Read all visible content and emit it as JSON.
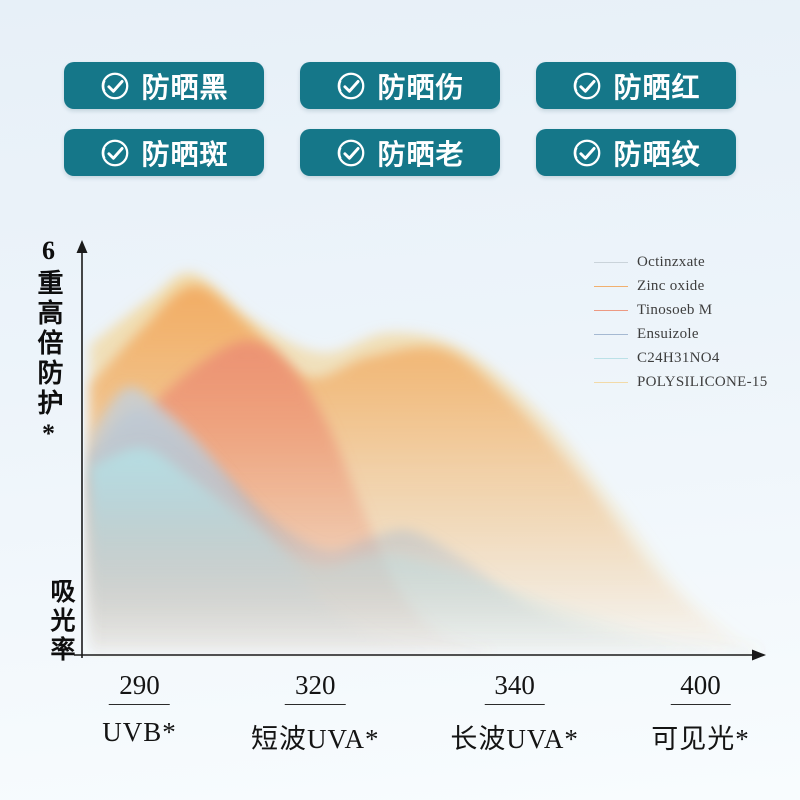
{
  "page": {
    "bg_top": "#e7f0f8",
    "bg_mid": "#edf4fa",
    "bg_bottom": "#f8fcfe"
  },
  "badges": {
    "bg_color": "#157789",
    "items": [
      "防晒黑",
      "防晒伤",
      "防晒红",
      "防晒斑",
      "防晒老",
      "防晒纹"
    ]
  },
  "chart_data": {
    "type": "area",
    "title": "",
    "ylabel_top": "6重高倍防护*",
    "ylabel_bottom": "吸光率",
    "x_range": [
      280,
      410
    ],
    "y_range": [
      0,
      1
    ],
    "grid": false,
    "legend_position": "top-right",
    "axis_color": "#1a1a1a",
    "x_axis": {
      "ticks": [
        {
          "value": "290",
          "label": "UVB*",
          "pos": 0.085
        },
        {
          "value": "320",
          "label": "短波UVA*",
          "pos": 0.345
        },
        {
          "value": "340",
          "label": "长波UVA*",
          "pos": 0.64
        },
        {
          "value": "400",
          "label": "可见光*",
          "pos": 0.915
        }
      ]
    },
    "series": [
      {
        "name": "Octinzxate",
        "color": "#c6cfd6",
        "z": 4,
        "x": [
          280,
          287,
          294,
          302,
          310,
          318,
          326,
          336,
          348,
          360
        ],
        "y": [
          0.55,
          0.67,
          0.62,
          0.52,
          0.38,
          0.24,
          0.12,
          0.04,
          0.01,
          0.0
        ]
      },
      {
        "name": "Zinc oxide",
        "color": "#f2a95f",
        "z": 1,
        "x": [
          280,
          290,
          300,
          310,
          322,
          334,
          348,
          360,
          375,
          390,
          403,
          410
        ],
        "y": [
          0.68,
          0.82,
          0.93,
          0.84,
          0.7,
          0.75,
          0.77,
          0.66,
          0.45,
          0.2,
          0.05,
          0.01
        ]
      },
      {
        "name": "Tinosoeb M",
        "color": "#ec8f74",
        "z": 2,
        "x": [
          280,
          290,
          300,
          310,
          318,
          326,
          333,
          340,
          348,
          358
        ],
        "y": [
          0.44,
          0.6,
          0.72,
          0.79,
          0.74,
          0.58,
          0.36,
          0.16,
          0.05,
          0.01
        ]
      },
      {
        "name": "Ensuizole",
        "color": "#9cb3cd",
        "z": 3,
        "x": [
          280,
          288,
          296,
          306,
          316,
          326,
          334,
          342,
          352,
          364,
          378,
          394,
          410
        ],
        "y": [
          0.5,
          0.62,
          0.57,
          0.45,
          0.33,
          0.26,
          0.29,
          0.31,
          0.24,
          0.13,
          0.06,
          0.02,
          0.0
        ]
      },
      {
        "name": "C24H31NO4",
        "color": "#b5dfe4",
        "z": 5,
        "x": [
          280,
          290,
          300,
          312,
          324,
          336,
          348,
          362,
          376,
          392,
          410
        ],
        "y": [
          0.47,
          0.52,
          0.44,
          0.32,
          0.22,
          0.25,
          0.22,
          0.16,
          0.1,
          0.04,
          0.01
        ]
      },
      {
        "name": "POLYSILICONE-15",
        "color": "#f2d79e",
        "z": 0,
        "x": [
          280,
          292,
          300,
          312,
          325,
          338,
          352,
          368,
          382,
          396,
          410
        ],
        "y": [
          0.78,
          0.9,
          0.96,
          0.84,
          0.76,
          0.81,
          0.77,
          0.6,
          0.38,
          0.15,
          0.01
        ]
      }
    ]
  }
}
